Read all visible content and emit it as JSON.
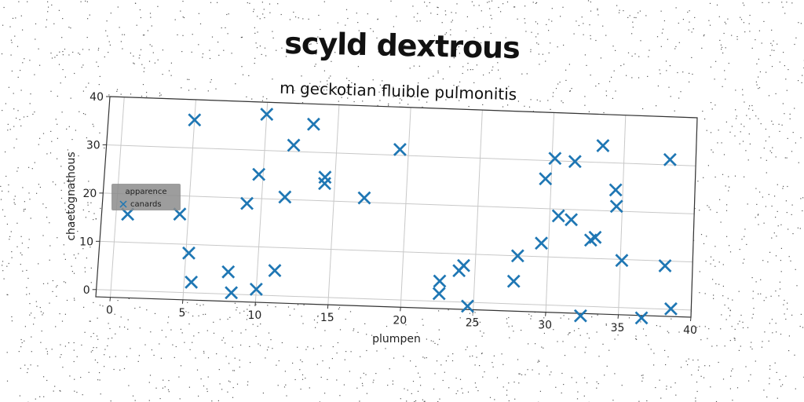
{
  "chart_data": {
    "type": "scatter",
    "title": "scyld dextrous",
    "subtitle": "m geckotian fluible pulmonitis",
    "xlabel": "plumpen",
    "ylabel": "chaetognathous",
    "xlim": [
      -1,
      40
    ],
    "ylim": [
      -1.5,
      40
    ],
    "xticks": [
      0,
      5,
      10,
      15,
      20,
      25,
      30,
      35,
      40
    ],
    "yticks": [
      0,
      10,
      20,
      30,
      40
    ],
    "grid": true,
    "legend": {
      "title": "apparence",
      "placement": "center-left"
    },
    "marker": "X",
    "series": [
      {
        "name": "canards",
        "color": "#1f77b4",
        "points": [
          [
            0.8,
            15.8
          ],
          [
            4.4,
            16.2
          ],
          [
            5.2,
            8.2
          ],
          [
            5.5,
            2.2
          ],
          [
            5.0,
            35.8
          ],
          [
            8.0,
            4.6
          ],
          [
            8.3,
            0.3
          ],
          [
            9.0,
            18.9
          ],
          [
            9.7,
            25.0
          ],
          [
            10.0,
            1.2
          ],
          [
            10.0,
            37.5
          ],
          [
            11.2,
            5.2
          ],
          [
            11.6,
            20.5
          ],
          [
            12.0,
            31.3
          ],
          [
            13.3,
            35.8
          ],
          [
            14.3,
            23.6
          ],
          [
            14.3,
            24.9
          ],
          [
            17.1,
            20.9
          ],
          [
            19.4,
            31.2
          ],
          [
            22.6,
            4.2
          ],
          [
            22.6,
            1.6
          ],
          [
            23.9,
            6.5
          ],
          [
            24.2,
            7.6
          ],
          [
            24.6,
            -0.8
          ],
          [
            27.7,
            4.7
          ],
          [
            27.9,
            10.0
          ],
          [
            29.5,
            12.8
          ],
          [
            29.6,
            26.2
          ],
          [
            30.2,
            30.5
          ],
          [
            30.6,
            18.6
          ],
          [
            31.5,
            17.9
          ],
          [
            31.6,
            30.0
          ],
          [
            32.4,
            -2.0
          ],
          [
            32.9,
            13.8
          ],
          [
            33.2,
            14.4
          ],
          [
            33.5,
            33.5
          ],
          [
            34.5,
            24.4
          ],
          [
            34.6,
            21.0
          ],
          [
            35.1,
            9.8
          ],
          [
            36.6,
            -2.0
          ],
          [
            38.1,
            9.0
          ],
          [
            38.2,
            31.1
          ],
          [
            38.6,
            0.1
          ]
        ]
      }
    ]
  }
}
